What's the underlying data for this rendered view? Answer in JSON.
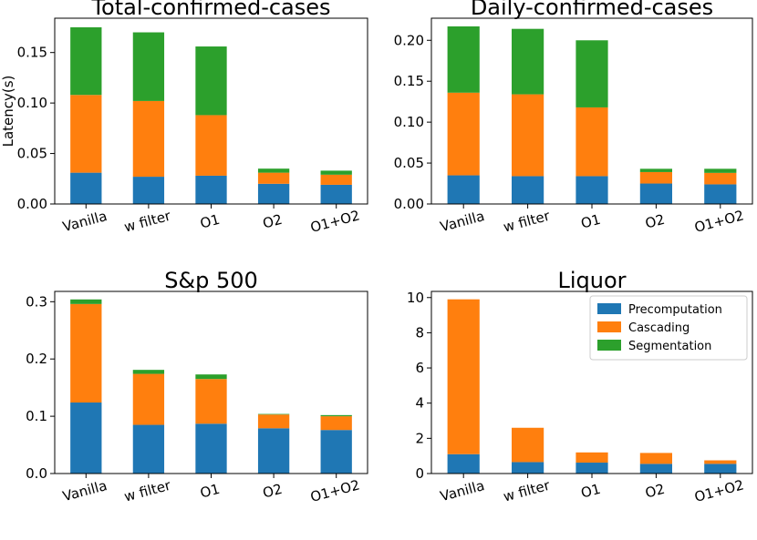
{
  "colors": {
    "Precomputation": "#1f77b4",
    "Cascading": "#ff7f0e",
    "Segmentation": "#2ca02c"
  },
  "chart_data": [
    {
      "type": "bar",
      "stacked": true,
      "title": "Total-confirmed-cases",
      "ylabel": "Latency(s)",
      "categories": [
        "Vanilla",
        "w filter",
        "O1",
        "O2",
        "O1+O2"
      ],
      "ylim": [
        0,
        0.184
      ],
      "yticks": [
        0.0,
        0.05,
        0.1,
        0.15
      ],
      "ytick_labels": [
        "0.00",
        "0.05",
        "0.10",
        "0.15"
      ],
      "series": [
        {
          "name": "Precomputation",
          "values": [
            0.031,
            0.027,
            0.028,
            0.02,
            0.019
          ]
        },
        {
          "name": "Cascading",
          "values": [
            0.077,
            0.075,
            0.06,
            0.011,
            0.01
          ]
        },
        {
          "name": "Segmentation",
          "values": [
            0.067,
            0.068,
            0.068,
            0.004,
            0.004
          ]
        }
      ]
    },
    {
      "type": "bar",
      "stacked": true,
      "title": "Daily-confirmed-cases",
      "ylabel": "",
      "categories": [
        "Vanilla",
        "w filter",
        "O1",
        "O2",
        "O1+O2"
      ],
      "ylim": [
        0,
        0.227
      ],
      "yticks": [
        0.0,
        0.05,
        0.1,
        0.15,
        0.2
      ],
      "ytick_labels": [
        "0.00",
        "0.05",
        "0.10",
        "0.15",
        "0.20"
      ],
      "series": [
        {
          "name": "Precomputation",
          "values": [
            0.035,
            0.034,
            0.034,
            0.025,
            0.024
          ]
        },
        {
          "name": "Cascading",
          "values": [
            0.101,
            0.1,
            0.084,
            0.014,
            0.014
          ]
        },
        {
          "name": "Segmentation",
          "values": [
            0.081,
            0.08,
            0.082,
            0.004,
            0.005
          ]
        }
      ]
    },
    {
      "type": "bar",
      "stacked": true,
      "title": "S&p 500",
      "ylabel": "",
      "categories": [
        "Vanilla",
        "w filter",
        "O1",
        "O2",
        "O1+O2"
      ],
      "ylim": [
        0,
        0.318
      ],
      "yticks": [
        0.0,
        0.1,
        0.2,
        0.3
      ],
      "ytick_labels": [
        "0.0",
        "0.1",
        "0.2",
        "0.3"
      ],
      "series": [
        {
          "name": "Precomputation",
          "values": [
            0.124,
            0.085,
            0.087,
            0.079,
            0.076
          ]
        },
        {
          "name": "Cascading",
          "values": [
            0.172,
            0.089,
            0.078,
            0.024,
            0.024
          ]
        },
        {
          "name": "Segmentation",
          "values": [
            0.008,
            0.007,
            0.008,
            0.001,
            0.002
          ]
        }
      ]
    },
    {
      "type": "bar",
      "stacked": true,
      "title": "Liquor",
      "ylabel": "",
      "categories": [
        "Vanilla",
        "w filter",
        "O1",
        "O2",
        "O1+O2"
      ],
      "ylim": [
        0,
        10.35
      ],
      "yticks": [
        0,
        2,
        4,
        6,
        8,
        10
      ],
      "ytick_labels": [
        "0",
        "2",
        "4",
        "6",
        "8",
        "10"
      ],
      "legend_position": "top-right",
      "legend": [
        "Precomputation",
        "Cascading",
        "Segmentation"
      ],
      "series": [
        {
          "name": "Precomputation",
          "values": [
            1.1,
            0.65,
            0.62,
            0.55,
            0.55
          ]
        },
        {
          "name": "Cascading",
          "values": [
            8.8,
            1.95,
            0.58,
            0.62,
            0.2
          ]
        },
        {
          "name": "Segmentation",
          "values": [
            0.0,
            0.0,
            0.0,
            0.0,
            0.0
          ]
        }
      ]
    }
  ]
}
